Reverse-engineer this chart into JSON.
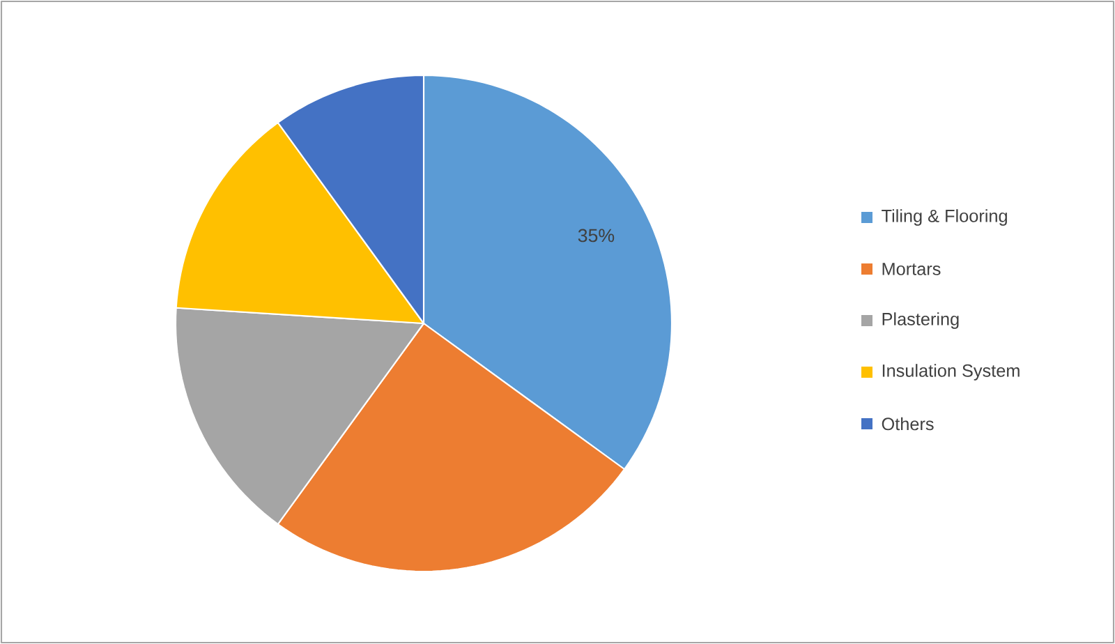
{
  "chart_data": {
    "type": "pie",
    "categories": [
      "Tiling & Flooring",
      "Mortars",
      "Plastering",
      "Insulation System",
      "Others"
    ],
    "values": [
      35,
      25,
      16,
      14,
      10
    ],
    "colors": [
      "#5b9bd5",
      "#ed7d31",
      "#a5a5a5",
      "#ffc000",
      "#4472c4"
    ],
    "value_labels": [
      "35%",
      null,
      null,
      null,
      null
    ],
    "legend": "right"
  }
}
